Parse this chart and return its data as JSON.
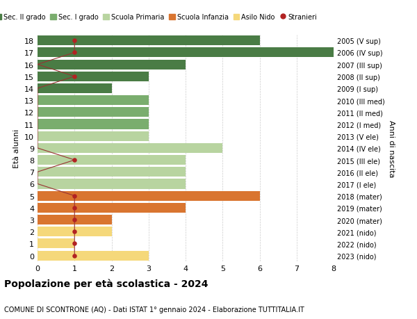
{
  "ages": [
    18,
    17,
    16,
    15,
    14,
    13,
    12,
    11,
    10,
    9,
    8,
    7,
    6,
    5,
    4,
    3,
    2,
    1,
    0
  ],
  "right_labels": [
    "2005 (V sup)",
    "2006 (IV sup)",
    "2007 (III sup)",
    "2008 (II sup)",
    "2009 (I sup)",
    "2010 (III med)",
    "2011 (II med)",
    "2012 (I med)",
    "2013 (V ele)",
    "2014 (IV ele)",
    "2015 (III ele)",
    "2016 (II ele)",
    "2017 (I ele)",
    "2018 (mater)",
    "2019 (mater)",
    "2020 (mater)",
    "2021 (nido)",
    "2022 (nido)",
    "2023 (nido)"
  ],
  "bar_values": [
    6,
    8,
    4,
    3,
    2,
    3,
    3,
    3,
    3,
    5,
    4,
    4,
    4,
    6,
    4,
    2,
    2,
    1,
    3
  ],
  "bar_colors": [
    "#4a7c45",
    "#4a7c45",
    "#4a7c45",
    "#4a7c45",
    "#4a7c45",
    "#7aad6e",
    "#7aad6e",
    "#7aad6e",
    "#b8d4a0",
    "#b8d4a0",
    "#b8d4a0",
    "#b8d4a0",
    "#b8d4a0",
    "#d97530",
    "#d97530",
    "#d97530",
    "#f5d87a",
    "#f5d87a",
    "#f5d87a"
  ],
  "stranieri_per_age": {
    "18": 1,
    "17": 1,
    "16": 0,
    "15": 1,
    "14": 0,
    "13": 0,
    "12": 0,
    "11": 0,
    "10": 0,
    "9": 0,
    "8": 1,
    "7": 0,
    "6": 0,
    "5": 1,
    "4": 1,
    "3": 1,
    "2": 1,
    "1": 1,
    "0": 1
  },
  "legend_labels": [
    "Sec. II grado",
    "Sec. I grado",
    "Scuola Primaria",
    "Scuola Infanzia",
    "Asilo Nido",
    "Stranieri"
  ],
  "legend_colors": [
    "#4a7c45",
    "#7aad6e",
    "#b8d4a0",
    "#d97530",
    "#f5d87a",
    "#b22222"
  ],
  "title": "Popolazione per età scolastica - 2024",
  "subtitle": "COMUNE DI SCONTRONE (AQ) - Dati ISTAT 1° gennaio 2024 - Elaborazione TUTTITALIA.IT",
  "ylabel": "Età alunni",
  "right_ylabel": "Anni di nascita",
  "xlabel_values": [
    0,
    1,
    2,
    3,
    4,
    5,
    6,
    7,
    8
  ],
  "xlim": [
    0,
    8
  ],
  "bg_color": "#ffffff",
  "grid_color": "#cccccc",
  "stranieri_color": "#b22222",
  "stranieri_line_color": "#993333"
}
